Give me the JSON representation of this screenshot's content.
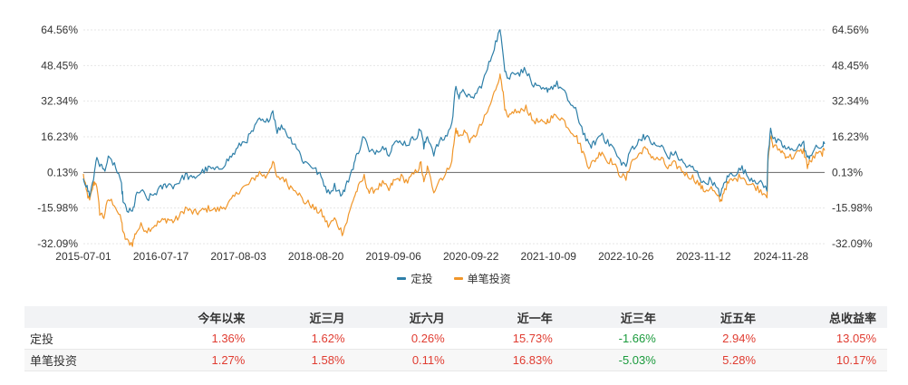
{
  "chart_data": {
    "type": "line",
    "x_ticks": [
      "2015-07-01",
      "2016-07-17",
      "2017-08-03",
      "2018-08-20",
      "2019-09-06",
      "2020-09-22",
      "2021-10-09",
      "2022-10-26",
      "2023-11-12",
      "2024-11-28"
    ],
    "y_ticks": [
      "64.56%",
      "48.45%",
      "32.34%",
      "16.23%",
      "0.13%",
      "-15.98%",
      "-32.09%"
    ],
    "ylim": [
      -32.09,
      64.56
    ],
    "x_range": [
      "2015-07-01",
      "2025-07-01"
    ],
    "series": [
      {
        "name": "定投",
        "color": "#2e7fa8",
        "points": [
          [
            "2015-07-01",
            -2
          ],
          [
            "2015-07-15",
            -6
          ],
          [
            "2015-08-01",
            -10
          ],
          [
            "2015-08-20",
            -3
          ],
          [
            "2015-09-01",
            6
          ],
          [
            "2015-09-20",
            4
          ],
          [
            "2015-10-10",
            1
          ],
          [
            "2015-11-01",
            6
          ],
          [
            "2015-12-01",
            4
          ],
          [
            "2016-01-05",
            -6
          ],
          [
            "2016-01-15",
            -14
          ],
          [
            "2016-02-01",
            -17
          ],
          [
            "2016-02-28",
            -18
          ],
          [
            "2016-03-15",
            -11
          ],
          [
            "2016-04-10",
            -8
          ],
          [
            "2016-05-10",
            -12
          ],
          [
            "2016-06-10",
            -10
          ],
          [
            "2016-07-17",
            -7
          ],
          [
            "2016-08-20",
            -5
          ],
          [
            "2016-09-15",
            -6
          ],
          [
            "2016-10-15",
            -4
          ],
          [
            "2016-11-15",
            -1
          ],
          [
            "2016-12-20",
            -3
          ],
          [
            "2017-01-15",
            -1
          ],
          [
            "2017-02-15",
            1
          ],
          [
            "2017-03-15",
            2
          ],
          [
            "2017-04-15",
            1
          ],
          [
            "2017-05-15",
            3
          ],
          [
            "2017-06-15",
            6
          ],
          [
            "2017-07-15",
            9
          ],
          [
            "2017-08-15",
            13
          ],
          [
            "2017-09-15",
            15
          ],
          [
            "2017-10-15",
            19
          ],
          [
            "2017-11-15",
            24
          ],
          [
            "2017-12-15",
            22
          ],
          [
            "2018-01-20",
            28
          ],
          [
            "2018-02-10",
            19
          ],
          [
            "2018-03-10",
            21
          ],
          [
            "2018-04-10",
            16
          ],
          [
            "2018-05-10",
            13
          ],
          [
            "2018-06-20",
            5
          ],
          [
            "2018-07-20",
            4
          ],
          [
            "2018-08-20",
            1
          ],
          [
            "2018-09-15",
            -2
          ],
          [
            "2018-10-20",
            -9
          ],
          [
            "2018-11-20",
            -6
          ],
          [
            "2018-12-28",
            -10
          ],
          [
            "2019-01-20",
            -5
          ],
          [
            "2019-02-20",
            3
          ],
          [
            "2019-03-10",
            8
          ],
          [
            "2019-04-15",
            17
          ],
          [
            "2019-05-10",
            9
          ],
          [
            "2019-06-15",
            10
          ],
          [
            "2019-07-15",
            12
          ],
          [
            "2019-08-15",
            9
          ],
          [
            "2019-09-06",
            13
          ],
          [
            "2019-10-15",
            14
          ],
          [
            "2019-11-15",
            13
          ],
          [
            "2019-12-31",
            17
          ],
          [
            "2020-01-20",
            20
          ],
          [
            "2020-02-03",
            11
          ],
          [
            "2020-02-20",
            17
          ],
          [
            "2020-03-23",
            9
          ],
          [
            "2020-04-20",
            14
          ],
          [
            "2020-05-20",
            16
          ],
          [
            "2020-06-20",
            22
          ],
          [
            "2020-07-10",
            40
          ],
          [
            "2020-07-25",
            34
          ],
          [
            "2020-08-20",
            37
          ],
          [
            "2020-09-22",
            33
          ],
          [
            "2020-10-20",
            36
          ],
          [
            "2020-11-20",
            41
          ],
          [
            "2020-12-20",
            49
          ],
          [
            "2021-01-15",
            57
          ],
          [
            "2021-02-10",
            64
          ],
          [
            "2021-02-20",
            61
          ],
          [
            "2021-03-08",
            47
          ],
          [
            "2021-03-25",
            42
          ],
          [
            "2021-04-20",
            46
          ],
          [
            "2021-05-20",
            45
          ],
          [
            "2021-06-20",
            47
          ],
          [
            "2021-07-20",
            40
          ],
          [
            "2021-08-20",
            38
          ],
          [
            "2021-09-20",
            37
          ],
          [
            "2021-10-09",
            38
          ],
          [
            "2021-11-20",
            40
          ],
          [
            "2021-12-20",
            37
          ],
          [
            "2022-01-20",
            32
          ],
          [
            "2022-02-20",
            28
          ],
          [
            "2022-03-15",
            22
          ],
          [
            "2022-04-26",
            12
          ],
          [
            "2022-05-20",
            13
          ],
          [
            "2022-06-30",
            18
          ],
          [
            "2022-07-20",
            14
          ],
          [
            "2022-08-20",
            12
          ],
          [
            "2022-09-20",
            6
          ],
          [
            "2022-10-26",
            3
          ],
          [
            "2022-11-20",
            11
          ],
          [
            "2022-12-20",
            13
          ],
          [
            "2023-01-20",
            17
          ],
          [
            "2023-02-15",
            15
          ],
          [
            "2023-03-20",
            12
          ],
          [
            "2023-04-20",
            12
          ],
          [
            "2023-05-20",
            7
          ],
          [
            "2023-06-20",
            9
          ],
          [
            "2023-07-20",
            6
          ],
          [
            "2023-08-20",
            3
          ],
          [
            "2023-09-20",
            2
          ],
          [
            "2023-10-20",
            -1
          ],
          [
            "2023-11-12",
            -5
          ],
          [
            "2023-12-20",
            -3
          ],
          [
            "2024-01-20",
            -8
          ],
          [
            "2024-02-05",
            -10
          ],
          [
            "2024-02-25",
            -4
          ],
          [
            "2024-03-20",
            -1
          ],
          [
            "2024-04-20",
            0
          ],
          [
            "2024-05-20",
            2
          ],
          [
            "2024-06-20",
            -2
          ],
          [
            "2024-07-20",
            -3
          ],
          [
            "2024-08-20",
            -5
          ],
          [
            "2024-09-20",
            -7
          ],
          [
            "2024-09-25",
            7
          ],
          [
            "2024-10-08",
            21
          ],
          [
            "2024-10-20",
            15
          ],
          [
            "2024-11-28",
            13
          ],
          [
            "2024-12-20",
            11
          ],
          [
            "2025-01-20",
            10
          ],
          [
            "2025-02-20",
            12
          ],
          [
            "2025-03-20",
            13
          ],
          [
            "2025-04-07",
            6
          ],
          [
            "2025-04-20",
            8
          ],
          [
            "2025-05-20",
            11
          ],
          [
            "2025-06-20",
            12
          ],
          [
            "2025-07-01",
            13
          ]
        ]
      },
      {
        "name": "单笔投资",
        "color": "#f0962a",
        "points": [
          [
            "2015-07-01",
            -1
          ],
          [
            "2015-07-15",
            -8
          ],
          [
            "2015-08-01",
            -13
          ],
          [
            "2015-08-20",
            -5
          ],
          [
            "2015-09-01",
            -4
          ],
          [
            "2015-09-20",
            -18
          ],
          [
            "2015-10-10",
            -20
          ],
          [
            "2015-11-01",
            -12
          ],
          [
            "2015-12-01",
            -14
          ],
          [
            "2016-01-05",
            -22
          ],
          [
            "2016-01-15",
            -28
          ],
          [
            "2016-02-01",
            -31
          ],
          [
            "2016-02-28",
            -32
          ],
          [
            "2016-03-15",
            -27
          ],
          [
            "2016-04-10",
            -24
          ],
          [
            "2016-05-10",
            -26
          ],
          [
            "2016-06-10",
            -24
          ],
          [
            "2016-07-17",
            -22
          ],
          [
            "2016-08-20",
            -21
          ],
          [
            "2016-09-15",
            -22
          ],
          [
            "2016-10-15",
            -20
          ],
          [
            "2016-11-15",
            -16
          ],
          [
            "2016-12-20",
            -18
          ],
          [
            "2017-01-15",
            -18
          ],
          [
            "2017-02-15",
            -17
          ],
          [
            "2017-03-15",
            -16
          ],
          [
            "2017-04-15",
            -17
          ],
          [
            "2017-05-15",
            -16
          ],
          [
            "2017-06-15",
            -14
          ],
          [
            "2017-07-15",
            -11
          ],
          [
            "2017-08-15",
            -7
          ],
          [
            "2017-09-15",
            -6
          ],
          [
            "2017-10-15",
            -3
          ],
          [
            "2017-11-15",
            0
          ],
          [
            "2017-12-15",
            -2
          ],
          [
            "2018-01-20",
            5
          ],
          [
            "2018-02-10",
            -3
          ],
          [
            "2018-03-10",
            -2
          ],
          [
            "2018-04-10",
            -6
          ],
          [
            "2018-05-10",
            -7
          ],
          [
            "2018-06-20",
            -13
          ],
          [
            "2018-07-20",
            -14
          ],
          [
            "2018-08-20",
            -17
          ],
          [
            "2018-09-15",
            -18
          ],
          [
            "2018-10-20",
            -24
          ],
          [
            "2018-11-20",
            -21
          ],
          [
            "2018-12-28",
            -27
          ],
          [
            "2019-01-20",
            -22
          ],
          [
            "2019-02-20",
            -12
          ],
          [
            "2019-03-10",
            -8
          ],
          [
            "2019-04-15",
            -2
          ],
          [
            "2019-05-10",
            -9
          ],
          [
            "2019-06-15",
            -7
          ],
          [
            "2019-07-15",
            -5
          ],
          [
            "2019-08-15",
            -8
          ],
          [
            "2019-09-06",
            -4
          ],
          [
            "2019-10-15",
            -2
          ],
          [
            "2019-11-15",
            -4
          ],
          [
            "2019-12-31",
            1
          ],
          [
            "2020-01-20",
            4
          ],
          [
            "2020-02-03",
            -5
          ],
          [
            "2020-02-20",
            2
          ],
          [
            "2020-03-23",
            -8
          ],
          [
            "2020-04-20",
            -3
          ],
          [
            "2020-05-20",
            -1
          ],
          [
            "2020-06-20",
            6
          ],
          [
            "2020-07-10",
            20
          ],
          [
            "2020-07-25",
            16
          ],
          [
            "2020-08-20",
            19
          ],
          [
            "2020-09-22",
            14
          ],
          [
            "2020-10-20",
            18
          ],
          [
            "2020-11-20",
            23
          ],
          [
            "2020-12-20",
            29
          ],
          [
            "2021-01-15",
            36
          ],
          [
            "2021-02-10",
            44
          ],
          [
            "2021-02-20",
            42
          ],
          [
            "2021-03-08",
            28
          ],
          [
            "2021-03-25",
            24
          ],
          [
            "2021-04-20",
            28
          ],
          [
            "2021-05-20",
            27
          ],
          [
            "2021-06-20",
            30
          ],
          [
            "2021-07-20",
            24
          ],
          [
            "2021-08-20",
            23
          ],
          [
            "2021-09-20",
            22
          ],
          [
            "2021-10-09",
            24
          ],
          [
            "2021-11-20",
            26
          ],
          [
            "2021-12-20",
            24
          ],
          [
            "2022-01-20",
            20
          ],
          [
            "2022-02-20",
            17
          ],
          [
            "2022-03-15",
            12
          ],
          [
            "2022-04-26",
            3
          ],
          [
            "2022-05-20",
            5
          ],
          [
            "2022-06-30",
            10
          ],
          [
            "2022-07-20",
            6
          ],
          [
            "2022-08-20",
            5
          ],
          [
            "2022-09-20",
            0
          ],
          [
            "2022-10-26",
            -3
          ],
          [
            "2022-11-20",
            5
          ],
          [
            "2022-12-20",
            7
          ],
          [
            "2023-01-20",
            11
          ],
          [
            "2023-02-15",
            9
          ],
          [
            "2023-03-20",
            6
          ],
          [
            "2023-04-20",
            6
          ],
          [
            "2023-05-20",
            2
          ],
          [
            "2023-06-20",
            4
          ],
          [
            "2023-07-20",
            2
          ],
          [
            "2023-08-20",
            -1
          ],
          [
            "2023-09-20",
            -2
          ],
          [
            "2023-10-20",
            -5
          ],
          [
            "2023-11-12",
            -8
          ],
          [
            "2023-12-20",
            -7
          ],
          [
            "2024-01-20",
            -11
          ],
          [
            "2024-02-05",
            -13
          ],
          [
            "2024-02-25",
            -7
          ],
          [
            "2024-03-20",
            -4
          ],
          [
            "2024-04-20",
            -3
          ],
          [
            "2024-05-20",
            -1
          ],
          [
            "2024-06-20",
            -5
          ],
          [
            "2024-07-20",
            -6
          ],
          [
            "2024-08-20",
            -8
          ],
          [
            "2024-09-20",
            -10
          ],
          [
            "2024-09-25",
            5
          ],
          [
            "2024-10-08",
            17
          ],
          [
            "2024-10-20",
            12
          ],
          [
            "2024-11-28",
            10
          ],
          [
            "2024-12-20",
            8
          ],
          [
            "2025-01-20",
            7
          ],
          [
            "2025-02-20",
            9
          ],
          [
            "2025-03-20",
            10
          ],
          [
            "2025-04-07",
            3
          ],
          [
            "2025-04-20",
            5
          ],
          [
            "2025-05-20",
            8
          ],
          [
            "2025-06-20",
            9
          ],
          [
            "2025-07-01",
            10
          ]
        ]
      }
    ]
  },
  "table": {
    "headers": [
      "",
      "今年以来",
      "近三月",
      "近六月",
      "近一年",
      "近三年",
      "近五年",
      "总收益率"
    ],
    "rows": [
      {
        "name": "定投",
        "values": [
          "1.36%",
          "1.62%",
          "0.26%",
          "15.73%",
          "-1.66%",
          "2.94%",
          "13.05%"
        ]
      },
      {
        "name": "单笔投资",
        "values": [
          "1.27%",
          "1.58%",
          "0.11%",
          "16.83%",
          "-5.03%",
          "5.28%",
          "10.17%"
        ]
      }
    ]
  }
}
